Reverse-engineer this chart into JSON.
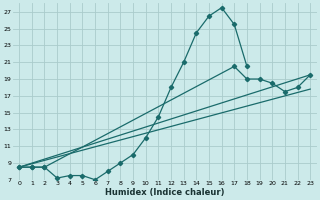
{
  "xlabel": "Humidex (Indice chaleur)",
  "bg_color": "#cceaea",
  "grid_color": "#aacccc",
  "line_color": "#1a6b6b",
  "xlim": [
    -0.5,
    23.5
  ],
  "ylim": [
    7,
    28
  ],
  "xticks": [
    0,
    1,
    2,
    3,
    4,
    5,
    6,
    7,
    8,
    9,
    10,
    11,
    12,
    13,
    14,
    15,
    16,
    17,
    18,
    19,
    20,
    21,
    22,
    23
  ],
  "yticks": [
    7,
    9,
    11,
    13,
    15,
    17,
    19,
    21,
    23,
    25,
    27
  ],
  "series": [
    {
      "x": [
        0,
        1,
        2,
        3,
        4,
        5,
        6,
        7,
        8,
        9,
        10,
        11,
        12,
        13,
        14,
        15,
        16,
        17,
        18
      ],
      "y": [
        8.5,
        8.5,
        8.5,
        7.2,
        7.5,
        7.5,
        7.0,
        8.0,
        9.0,
        10.0,
        12.0,
        14.5,
        18.0,
        21.0,
        24.5,
        26.5,
        27.5,
        25.5,
        20.5
      ],
      "markers": true
    },
    {
      "x": [
        0,
        1,
        2,
        17,
        18,
        19,
        20,
        21,
        22,
        23
      ],
      "y": [
        8.5,
        8.5,
        8.5,
        20.5,
        19.0,
        19.0,
        18.5,
        17.5,
        18.0,
        19.5
      ],
      "markers": true
    },
    {
      "x": [
        0,
        23
      ],
      "y": [
        8.5,
        19.5
      ],
      "markers": false
    },
    {
      "x": [
        0,
        23
      ],
      "y": [
        8.5,
        17.8
      ],
      "markers": false
    }
  ]
}
